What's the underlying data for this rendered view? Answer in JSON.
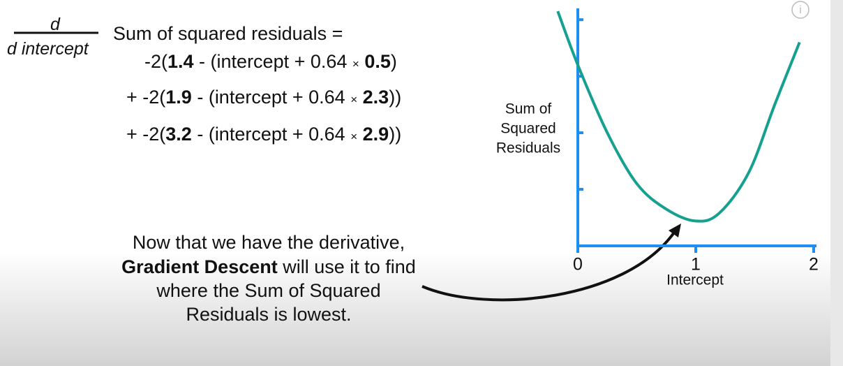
{
  "equation": {
    "numerator": "d",
    "denominator": "d intercept",
    "lhs": "Sum of squared residuals =",
    "terms": [
      [
        "-2(",
        "1.4",
        " - (intercept + 0.64 ",
        "×",
        " ",
        "0.5",
        ")"
      ],
      [
        "+ -2(",
        "1.9",
        " - (intercept + 0.64 ",
        "×",
        " ",
        "2.3",
        "))"
      ],
      [
        "+ -2(",
        "3.2",
        " - (intercept + 0.64 ",
        "×",
        " ",
        "2.9",
        "))"
      ]
    ]
  },
  "annotation": {
    "lines": [
      [
        "Now that we have the derivative,"
      ],
      [
        "Gradient Descent",
        " will use it to find"
      ],
      [
        "where the Sum of Squared"
      ],
      [
        "Residuals is lowest."
      ]
    ]
  },
  "chart_data": {
    "type": "line",
    "x_label": "Intercept",
    "y_label": [
      "Sum of",
      "Squared",
      "Residuals"
    ],
    "x": [
      -0.17,
      0,
      0.25,
      0.5,
      0.75,
      1,
      1.2,
      1.45,
      1.67,
      1.88
    ],
    "series": [
      {
        "color": "#16a08f",
        "values": [
          4.15,
          3.2,
          2.0,
          1.1,
          0.65,
          0.44,
          0.58,
          1.3,
          2.5,
          3.6
        ]
      }
    ],
    "xlim": [
      0,
      2
    ],
    "xticks": [
      0,
      1,
      2
    ],
    "ylim": [
      0,
      4.2
    ],
    "yticks": [
      1,
      2,
      3,
      4
    ],
    "axis_color": "#1d8ff2"
  }
}
